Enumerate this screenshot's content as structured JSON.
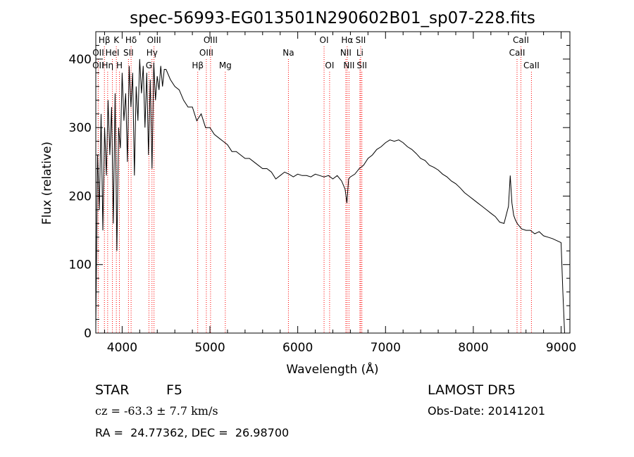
{
  "chart_data": {
    "type": "line",
    "title": "spec-56993-EG013501N290602B01_sp07-228.fits",
    "xlabel": "Wavelength (Å)",
    "ylabel": "Flux (relative)",
    "xlim": [
      3700,
      9100
    ],
    "ylim": [
      0,
      440
    ],
    "x_ticks": [
      4000,
      5000,
      6000,
      7000,
      8000,
      9000
    ],
    "x_tick_labels": [
      "4000",
      "5000",
      "6000",
      "7000",
      "8000",
      "9000"
    ],
    "y_ticks": [
      0,
      100,
      200,
      300,
      400
    ],
    "y_tick_labels": [
      "0",
      "100",
      "200",
      "300",
      "400"
    ],
    "grid": false,
    "line_color": "#000000",
    "marker_color": "#ff0000",
    "series": [
      {
        "x": [
          3700,
          3720,
          3740,
          3760,
          3780,
          3800,
          3820,
          3840,
          3860,
          3880,
          3900,
          3920,
          3940,
          3960,
          3980,
          4000,
          4020,
          4040,
          4060,
          4080,
          4100,
          4120,
          4140,
          4160,
          4180,
          4200,
          4220,
          4240,
          4260,
          4280,
          4300,
          4320,
          4340,
          4360,
          4380,
          4400,
          4420,
          4440,
          4460,
          4480,
          4500,
          4550,
          4600,
          4650,
          4700,
          4750,
          4800,
          4850,
          4900,
          4950,
          5000,
          5050,
          5100,
          5150,
          5200,
          5250,
          5300,
          5350,
          5400,
          5450,
          5500,
          5550,
          5600,
          5650,
          5700,
          5750,
          5800,
          5850,
          5900,
          5950,
          6000,
          6050,
          6100,
          6150,
          6200,
          6250,
          6300,
          6350,
          6400,
          6450,
          6500,
          6540,
          6560,
          6580,
          6600,
          6650,
          6700,
          6750,
          6800,
          6850,
          6900,
          6950,
          7000,
          7050,
          7100,
          7150,
          7200,
          7250,
          7300,
          7350,
          7400,
          7450,
          7500,
          7550,
          7600,
          7650,
          7700,
          7750,
          7800,
          7850,
          7900,
          7950,
          8000,
          8050,
          8100,
          8150,
          8200,
          8250,
          8300,
          8350,
          8400,
          8420,
          8440,
          8460,
          8480,
          8500,
          8550,
          8600,
          8650,
          8700,
          8750,
          8800,
          8850,
          8900,
          8950,
          9000,
          9020,
          9040
        ],
        "y": [
          10,
          260,
          180,
          320,
          150,
          300,
          230,
          340,
          260,
          330,
          160,
          350,
          120,
          300,
          270,
          380,
          310,
          350,
          250,
          390,
          330,
          380,
          230,
          360,
          310,
          400,
          350,
          390,
          300,
          380,
          260,
          370,
          240,
          395,
          340,
          375,
          355,
          390,
          360,
          385,
          385,
          370,
          360,
          355,
          340,
          330,
          330,
          310,
          320,
          300,
          300,
          290,
          285,
          280,
          275,
          265,
          265,
          260,
          255,
          255,
          250,
          245,
          240,
          240,
          235,
          225,
          230,
          235,
          232,
          228,
          232,
          230,
          230,
          228,
          232,
          230,
          228,
          230,
          225,
          230,
          222,
          210,
          190,
          225,
          228,
          232,
          240,
          245,
          255,
          260,
          268,
          272,
          278,
          282,
          280,
          282,
          278,
          272,
          268,
          262,
          255,
          252,
          245,
          242,
          238,
          232,
          228,
          222,
          218,
          212,
          205,
          200,
          195,
          190,
          185,
          180,
          175,
          170,
          162,
          160,
          185,
          230,
          190,
          172,
          165,
          160,
          152,
          150,
          150,
          145,
          148,
          142,
          140,
          138,
          135,
          132,
          60,
          0
        ]
      }
    ],
    "line_markers": [
      {
        "label": "Hβ",
        "row": 0,
        "x": 3798
      },
      {
        "label": "OII",
        "row": 1,
        "x": 3728
      },
      {
        "label": "OII",
        "row": 2,
        "x": 3727
      },
      {
        "label": "K",
        "row": 0,
        "x": 3934
      },
      {
        "label": "HeI",
        "row": 1,
        "x": 3889
      },
      {
        "label": "Hη",
        "row": 2,
        "x": 3835
      },
      {
        "label": "H",
        "row": 2,
        "x": 3969
      },
      {
        "label": "Hδ",
        "row": 0,
        "x": 4102
      },
      {
        "label": "SII",
        "row": 1,
        "x": 4072
      },
      {
        "label": "OIII",
        "row": 0,
        "x": 4363
      },
      {
        "label": "Hγ",
        "row": 1,
        "x": 4340
      },
      {
        "label": "G",
        "row": 2,
        "x": 4305
      },
      {
        "label": "OIII",
        "row": 0,
        "x": 5007
      },
      {
        "label": "OIII",
        "row": 1,
        "x": 4959
      },
      {
        "label": "Hβ",
        "row": 2,
        "x": 4861
      },
      {
        "label": "Mg",
        "row": 2,
        "x": 5175
      },
      {
        "label": "Na",
        "row": 1,
        "x": 5894
      },
      {
        "label": "OI",
        "row": 0,
        "x": 6300
      },
      {
        "label": "OI",
        "row": 2,
        "x": 6363
      },
      {
        "label": "Hα",
        "row": 0,
        "x": 6563
      },
      {
        "label": "NII",
        "row": 1,
        "x": 6548
      },
      {
        "label": "NII",
        "row": 2,
        "x": 6584
      },
      {
        "label": "SII",
        "row": 0,
        "x": 6717
      },
      {
        "label": "Li",
        "row": 1,
        "x": 6708
      },
      {
        "label": "SII",
        "row": 2,
        "x": 6731
      },
      {
        "label": "CaII",
        "row": 0,
        "x": 8542
      },
      {
        "label": "CaII",
        "row": 1,
        "x": 8498
      },
      {
        "label": "CaII",
        "row": 2,
        "x": 8662
      }
    ]
  },
  "info": {
    "object_type": "STAR",
    "subclass": "F5",
    "survey": "LAMOST DR5",
    "velocity": "cz = -63.3 ± 7.7 km/s",
    "obs_date": "Obs-Date: 20141201",
    "coords": "RA =  24.77362, DEC =  26.98700"
  }
}
